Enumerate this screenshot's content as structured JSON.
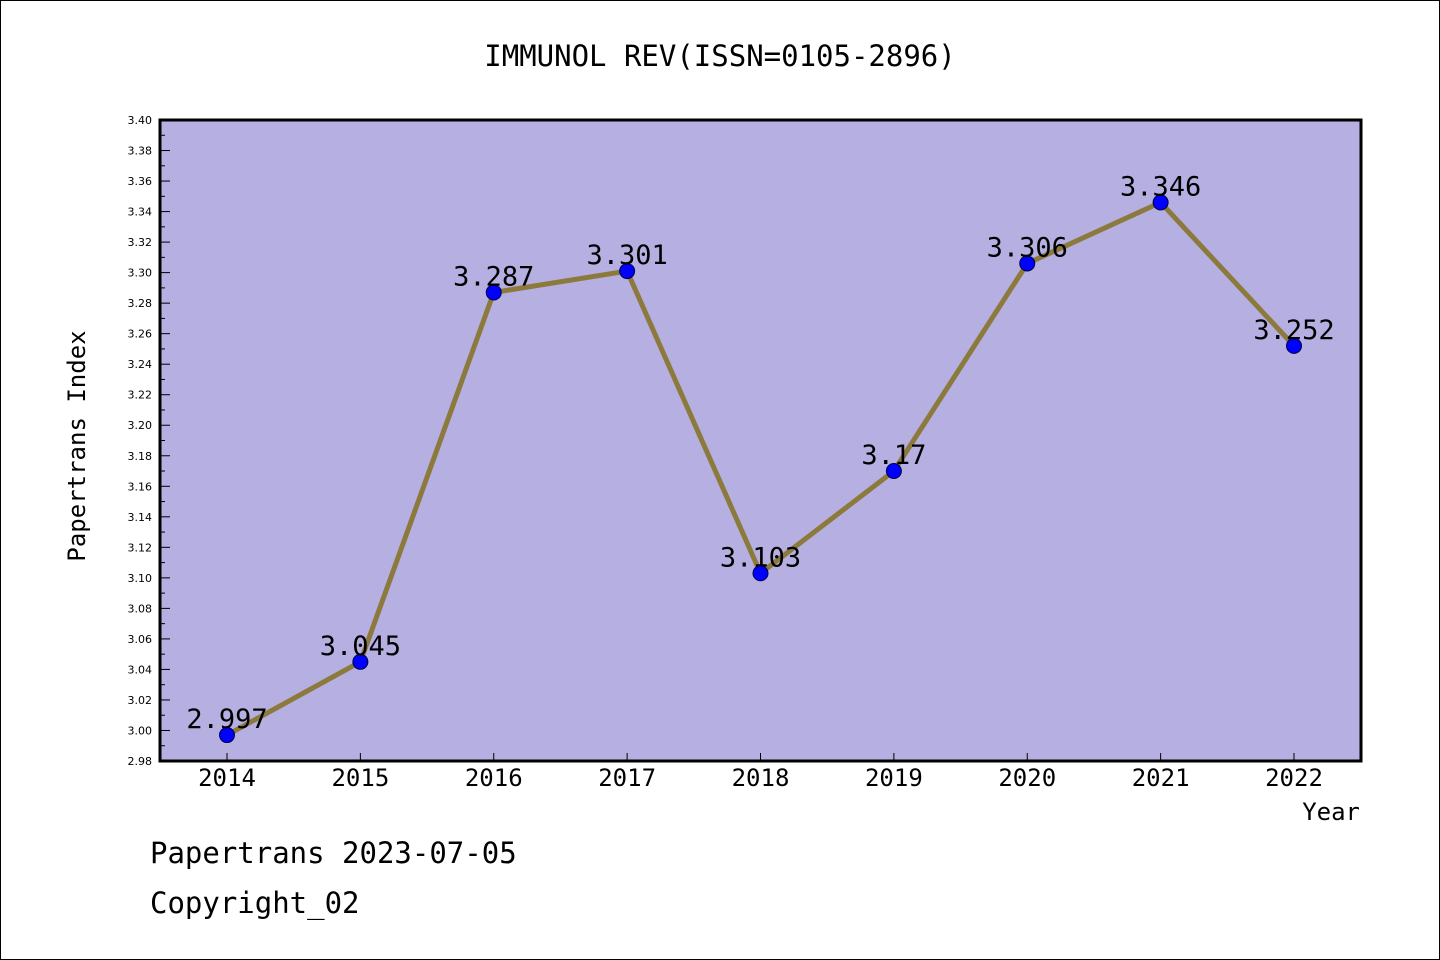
{
  "chart_data": {
    "type": "line",
    "title": "IMMUNOL REV(ISSN=0105-2896)",
    "xlabel": "Year",
    "ylabel": "Papertrans Index",
    "x": [
      "2014",
      "2015",
      "2016",
      "2017",
      "2018",
      "2019",
      "2020",
      "2021",
      "2022"
    ],
    "series": [
      {
        "values": [
          2.997,
          3.045,
          3.287,
          3.301,
          3.103,
          3.17,
          3.306,
          3.346,
          3.252
        ],
        "labels": [
          "2.997",
          "3.045",
          "3.287",
          "3.301",
          "3.103",
          "3.17",
          "3.306",
          "3.346",
          "3.252"
        ]
      }
    ],
    "ylim": [
      2.98,
      3.4
    ],
    "yticks": [
      "2.98",
      "3.00",
      "3.02",
      "3.04",
      "3.06",
      "3.08",
      "3.10",
      "3.12",
      "3.14",
      "3.16",
      "3.18",
      "3.20",
      "3.22",
      "3.24",
      "3.26",
      "3.28",
      "3.30",
      "3.32",
      "3.34",
      "3.36",
      "3.38",
      "3.40"
    ],
    "grid": false,
    "legend": "none",
    "colors": {
      "plot_background": "#b5afe2",
      "line": "#8c7a3c",
      "marker": "#0000ff",
      "axis": "#000000"
    }
  },
  "footer": {
    "line1": "Papertrans 2023-07-05",
    "line2": "Copyright_02"
  }
}
